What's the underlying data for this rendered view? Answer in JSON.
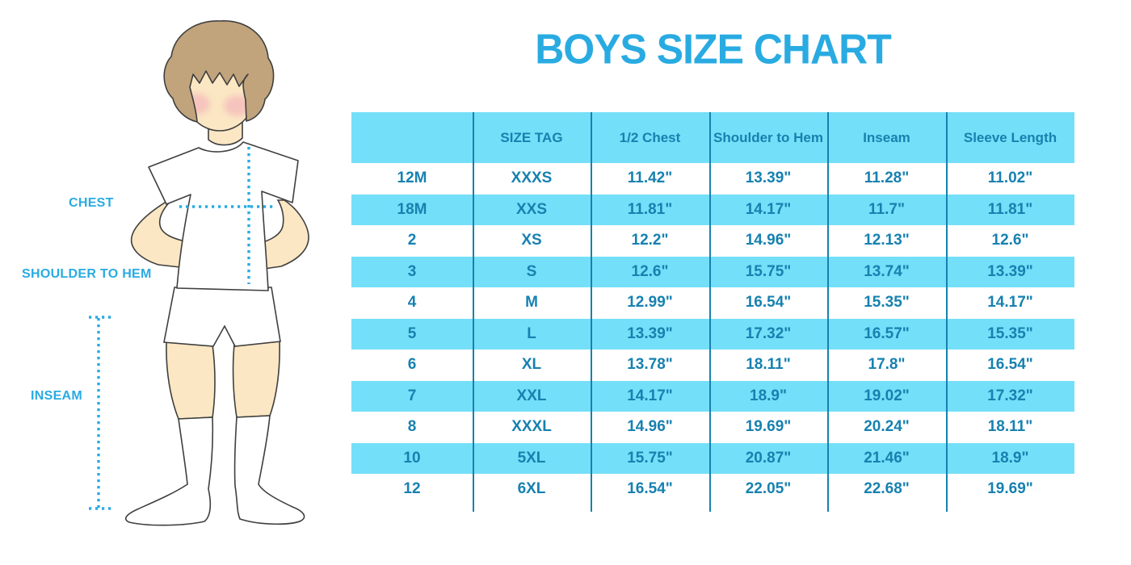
{
  "title": "BOYS SIZE CHART",
  "figure": {
    "description": "illustration of a boy in white t-shirt, shorts and knee socks with measurement guides",
    "labels": {
      "chest": "CHEST",
      "shoulder_to_hem": "SHOULDER TO HEM",
      "inseam": "INSEAM"
    }
  },
  "colors": {
    "accent_blue": "#29ABE2",
    "table_text_blue": "#1781B0",
    "row_light_blue": "#74DFF8",
    "skin": "#FBE7C3",
    "hair": "#C1A47C",
    "blush": "#F2A8B8",
    "outline": "#3F3F3F"
  },
  "chart_data": {
    "type": "table",
    "title": "BOYS SIZE CHART",
    "columns": [
      "",
      "SIZE TAG",
      "1/2 Chest",
      "Shoulder to Hem",
      "Inseam",
      "Sleeve Length"
    ],
    "rows": [
      [
        "12M",
        "XXXS",
        "11.42\"",
        "13.39\"",
        "11.28\"",
        "11.02\""
      ],
      [
        "18M",
        "XXS",
        "11.81\"",
        "14.17\"",
        "11.7\"",
        "11.81\""
      ],
      [
        "2",
        "XS",
        "12.2\"",
        "14.96\"",
        "12.13\"",
        "12.6\""
      ],
      [
        "3",
        "S",
        "12.6\"",
        "15.75\"",
        "13.74\"",
        "13.39\""
      ],
      [
        "4",
        "M",
        "12.99\"",
        "16.54\"",
        "15.35\"",
        "14.17\""
      ],
      [
        "5",
        "L",
        "13.39\"",
        "17.32\"",
        "16.57\"",
        "15.35\""
      ],
      [
        "6",
        "XL",
        "13.78\"",
        "18.11\"",
        "17.8\"",
        "16.54\""
      ],
      [
        "7",
        "XXL",
        "14.17\"",
        "18.9\"",
        "19.02\"",
        "17.32\""
      ],
      [
        "8",
        "XXXL",
        "14.96\"",
        "19.69\"",
        "20.24\"",
        "18.11\""
      ],
      [
        "10",
        "5XL",
        "15.75\"",
        "20.87\"",
        "21.46\"",
        "18.9\""
      ],
      [
        "12",
        "6XL",
        "16.54\"",
        "22.05\"",
        "22.68\"",
        "19.69\""
      ]
    ]
  }
}
